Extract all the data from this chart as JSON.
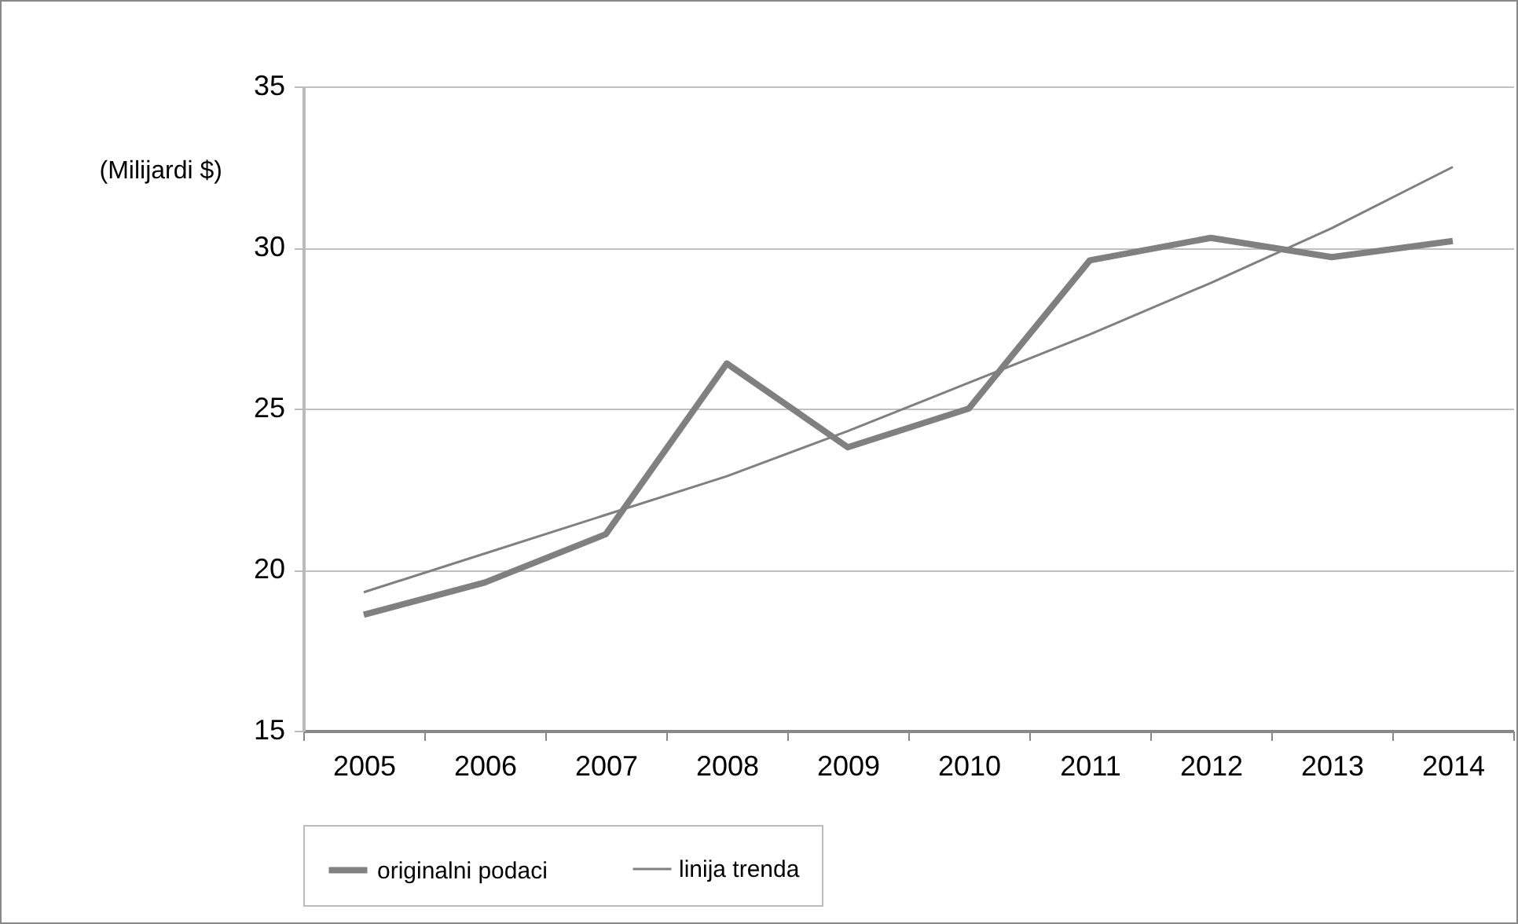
{
  "chart_data": {
    "type": "line",
    "ylabel": "(Milijardi $)",
    "categories": [
      "2005",
      "2006",
      "2007",
      "2008",
      "2009",
      "2010",
      "2011",
      "2012",
      "2013",
      "2014"
    ],
    "series": [
      {
        "name": "originalni podaci",
        "color": "#808080",
        "values": [
          18.6,
          19.6,
          21.1,
          26.4,
          23.8,
          25.0,
          29.6,
          30.3,
          29.7,
          30.2
        ]
      },
      {
        "name": "linija trenda",
        "color": "#808080",
        "values": [
          19.3,
          20.5,
          21.7,
          22.9,
          24.3,
          25.8,
          27.3,
          28.9,
          30.6,
          32.5
        ]
      }
    ],
    "ylim": [
      15,
      35
    ],
    "yticks": [
      15,
      20,
      25,
      30,
      35
    ],
    "grid": "y",
    "legend": "bottom",
    "marker": "none",
    "line_style": "solid"
  }
}
